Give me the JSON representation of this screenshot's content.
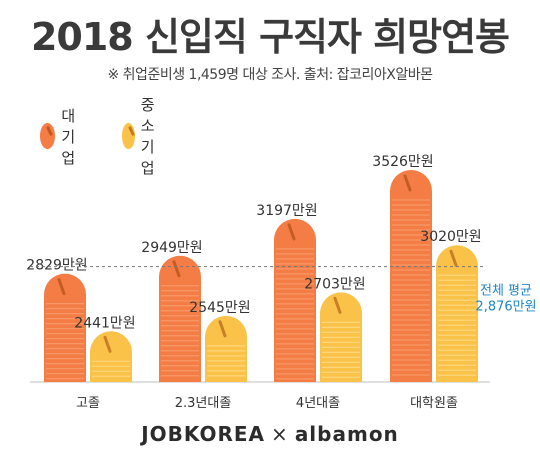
{
  "title": "2018 신입직 구직자 희망연봉",
  "subtitle": "※ 취업준비생 1,459명 대상 조사. 출처: 잡코리아X알바몬",
  "legend": [
    {
      "label": "대기업",
      "color": "#f47c45"
    },
    {
      "label": "중소기업",
      "color": "#fbc24a"
    }
  ],
  "brand": {
    "left": "JOBKOREA",
    "sep": "×",
    "right": "albamon"
  },
  "colors": {
    "large": "#f47c45",
    "small": "#fbc24a",
    "average_text": "#1f86c6"
  },
  "chart_data": {
    "type": "bar",
    "title": "2018 신입직 구직자 희망연봉",
    "categories": [
      "고졸",
      "2.3년대졸",
      "4년대졸",
      "대학원졸"
    ],
    "series": [
      {
        "name": "대기업",
        "values": [
          2829,
          2949,
          3197,
          3526
        ],
        "labels": [
          "2829만원",
          "2949만원",
          "3197만원",
          "3526만원"
        ]
      },
      {
        "name": "중소기업",
        "values": [
          2441,
          2545,
          2703,
          3020
        ],
        "labels": [
          "2441만원",
          "2545만원",
          "2703만원",
          "3020만원"
        ]
      }
    ],
    "reference_line": {
      "value": 2876,
      "label_line1": "전체 평균",
      "label_line2": "2,876만원",
      "style": "dashed"
    },
    "unit": "만원",
    "ylim": [
      0,
      3600
    ]
  }
}
